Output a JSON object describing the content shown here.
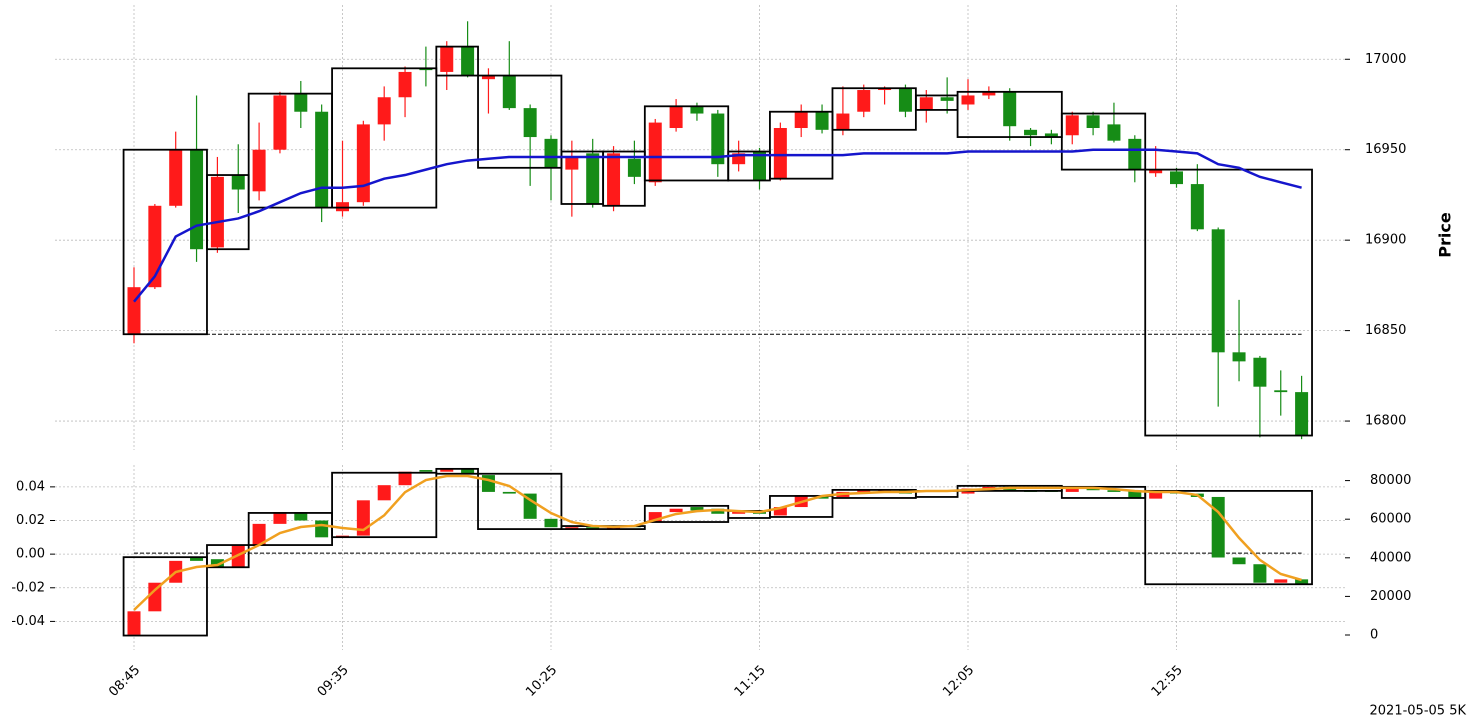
{
  "chart_data": [
    {
      "type": "candlestick",
      "y_label": "Price",
      "categories": [
        "08:45",
        null,
        null,
        null,
        null,
        null,
        null,
        null,
        null,
        null,
        "09:35",
        null,
        null,
        null,
        null,
        null,
        null,
        null,
        null,
        null,
        "10:25",
        null,
        null,
        null,
        null,
        null,
        null,
        null,
        null,
        null,
        "11:15",
        null,
        null,
        null,
        null,
        null,
        null,
        null,
        null,
        null,
        "12:05",
        null,
        null,
        null,
        null,
        null,
        null,
        null,
        null,
        null,
        "12:55",
        null,
        null,
        null,
        null,
        null,
        null
      ],
      "open": [
        16848,
        16874,
        16919,
        16950,
        16896,
        16936,
        16927,
        16950,
        16981,
        16971,
        16916,
        16921,
        16964,
        16979,
        16995,
        16993,
        17007,
        16989,
        16991,
        16973,
        16956,
        16939,
        16948,
        16919,
        16945,
        16932,
        16962,
        16974,
        16970,
        16942,
        16949,
        16934,
        16962,
        16971,
        16961,
        16971,
        16983,
        16984,
        16972,
        16979,
        16975,
        16980,
        16982,
        16961,
        16959,
        16958,
        16969,
        16964,
        16956,
        16937,
        16938,
        16931,
        16906,
        16838,
        16835,
        16817,
        16816
      ],
      "high": [
        16885,
        16920,
        16960,
        16980,
        16946,
        16953,
        16965,
        16982,
        16988,
        16975,
        16955,
        16966,
        16985,
        16996,
        17007,
        17010,
        17021,
        16995,
        17010,
        16975,
        16958,
        16955,
        16956,
        16952,
        16955,
        16967,
        16978,
        16976,
        16972,
        16955,
        16951,
        16965,
        16975,
        16975,
        16985,
        16986,
        16985,
        16986,
        16983,
        16990,
        16989,
        16985,
        16984,
        16962,
        16961,
        16971,
        16971,
        16976,
        16958,
        16952,
        16940,
        16942,
        16907,
        16867,
        16836,
        16828,
        16825
      ],
      "low": [
        16843,
        16873,
        16918,
        16888,
        16893,
        16915,
        16922,
        16948,
        16962,
        16910,
        16913,
        16919,
        16955,
        16968,
        16985,
        16983,
        16990,
        16970,
        16972,
        16930,
        16922,
        16913,
        16918,
        16916,
        16931,
        16930,
        16960,
        16966,
        16935,
        16938,
        16928,
        16933,
        16957,
        16959,
        16958,
        16968,
        16975,
        16968,
        16965,
        16970,
        16972,
        16978,
        16955,
        16952,
        16953,
        16953,
        16958,
        16954,
        16932,
        16935,
        16929,
        16905,
        16808,
        16822,
        16791,
        16803,
        16790
      ],
      "close": [
        16874,
        16919,
        16950,
        16895,
        16935,
        16928,
        16950,
        16980,
        16971,
        16918,
        16921,
        16964,
        16979,
        16993,
        16994,
        17007,
        16991,
        16991,
        16973,
        16957,
        16940,
        16946,
        16920,
        16948,
        16935,
        16965,
        16974,
        16970,
        16942,
        16948,
        16933,
        16962,
        16971,
        16961,
        16970,
        16983,
        16984,
        16971,
        16979,
        16977,
        16980,
        16982,
        16963,
        16958,
        16957,
        16969,
        16962,
        16955,
        16939,
        16939,
        16931,
        16906,
        16838,
        16833,
        16819,
        16816,
        16792
      ],
      "up_color": "#ff1a1a",
      "down_color": "#168c16",
      "box_color": "#000000",
      "line": {
        "color": "#1515cc",
        "values": [
          16866,
          16880,
          16902,
          16908,
          16910,
          16912,
          16916,
          16921,
          16926,
          16929,
          16929,
          16930,
          16934,
          16936,
          16939,
          16942,
          16944,
          16945,
          16946,
          16946,
          16946,
          16946,
          16946,
          16946,
          16946,
          16946,
          16946,
          16946,
          16946,
          16947,
          16947,
          16947,
          16947,
          16947,
          16947,
          16948,
          16948,
          16948,
          16948,
          16948,
          16949,
          16949,
          16949,
          16949,
          16949,
          16949,
          16950,
          16950,
          16950,
          16950,
          16949,
          16948,
          16942,
          16940,
          16935,
          16932,
          16929
        ]
      },
      "boxes": [
        {
          "from": 0,
          "to": 3,
          "low": 16848,
          "high": 16950
        },
        {
          "from": 4,
          "to": 5,
          "low": 16895,
          "high": 16936
        },
        {
          "from": 6,
          "to": 9,
          "low": 16918,
          "high": 16981
        },
        {
          "from": 10,
          "to": 14,
          "low": 16918,
          "high": 16995
        },
        {
          "from": 15,
          "to": 16,
          "low": 16991,
          "high": 17007
        },
        {
          "from": 17,
          "to": 20,
          "low": 16940,
          "high": 16991
        },
        {
          "from": 21,
          "to": 22,
          "low": 16920,
          "high": 16949
        },
        {
          "from": 23,
          "to": 24,
          "low": 16919,
          "high": 16949
        },
        {
          "from": 25,
          "to": 28,
          "low": 16933,
          "high": 16974
        },
        {
          "from": 29,
          "to": 30,
          "low": 16933,
          "high": 16949
        },
        {
          "from": 31,
          "to": 33,
          "low": 16934,
          "high": 16971
        },
        {
          "from": 34,
          "to": 37,
          "low": 16961,
          "high": 16984
        },
        {
          "from": 38,
          "to": 39,
          "low": 16972,
          "high": 16980
        },
        {
          "from": 40,
          "to": 44,
          "low": 16957,
          "high": 16982
        },
        {
          "from": 45,
          "to": 48,
          "low": 16939,
          "high": 16970
        },
        {
          "from": 49,
          "to": 56,
          "low": 16792,
          "high": 16939
        }
      ],
      "hline": 16848,
      "ylim": [
        16784,
        17030
      ],
      "yticks": [
        16800,
        16850,
        16900,
        16950,
        17000
      ],
      "grid": true
    },
    {
      "type": "candlestick",
      "open": [
        -0.048,
        -0.034,
        -0.017,
        -0.002,
        -0.003,
        -0.008,
        0.005,
        0.018,
        0.025,
        0.02,
        0.01,
        0.011,
        0.032,
        0.041,
        0.05,
        0.049,
        0.051,
        0.047,
        0.037,
        0.036,
        0.021,
        0.015,
        0.016,
        0.015,
        0.017,
        0.019,
        0.025,
        0.028,
        0.027,
        0.024,
        0.026,
        0.023,
        0.028,
        0.035,
        0.034,
        0.037,
        0.038,
        0.038,
        0.037,
        0.038,
        0.036,
        0.039,
        0.04,
        0.038,
        0.038,
        0.037,
        0.039,
        0.038,
        0.038,
        0.033,
        0.037,
        0.036,
        0.034,
        -0.002,
        -0.006,
        -0.017,
        -0.015
      ],
      "close": [
        -0.034,
        -0.017,
        -0.004,
        -0.004,
        -0.008,
        0.005,
        0.018,
        0.025,
        0.02,
        0.01,
        0.011,
        0.032,
        0.041,
        0.049,
        0.049,
        0.051,
        0.048,
        0.037,
        0.036,
        0.021,
        0.016,
        0.016,
        0.015,
        0.017,
        0.016,
        0.025,
        0.027,
        0.026,
        0.024,
        0.026,
        0.024,
        0.028,
        0.035,
        0.033,
        0.037,
        0.038,
        0.0385,
        0.036,
        0.038,
        0.037,
        0.039,
        0.04,
        0.038,
        0.037,
        0.037,
        0.039,
        0.038,
        0.037,
        0.033,
        0.037,
        0.036,
        0.034,
        -0.002,
        -0.006,
        -0.017,
        -0.015,
        -0.018
      ],
      "up_color": "#ff1a1a",
      "down_color": "#168c16",
      "box_color": "#000000",
      "line": {
        "color": "#f0a020",
        "axis": "y2",
        "values": [
          12950,
          23320,
          32640,
          35230,
          36270,
          41450,
          46630,
          52850,
          55960,
          57000,
          55440,
          54400,
          62000,
          74000,
          80300,
          82400,
          82400,
          80300,
          77200,
          70000,
          63200,
          58500,
          56500,
          56000,
          56500,
          59600,
          62700,
          64200,
          64800,
          64200,
          63700,
          65800,
          68900,
          72000,
          73100,
          73600,
          74100,
          74100,
          74600,
          74600,
          75100,
          75600,
          76200,
          76200,
          76200,
          76200,
          76200,
          75600,
          74600,
          74100,
          74100,
          72500,
          63700,
          50300,
          38900,
          31600,
          28500
        ]
      },
      "boxes": [
        {
          "from": 0,
          "to": 3,
          "low": -0.0484,
          "high": -0.0018
        },
        {
          "from": 4,
          "to": 5,
          "low": -0.0078,
          "high": 0.0054
        },
        {
          "from": 6,
          "to": 9,
          "low": 0.0054,
          "high": 0.0245
        },
        {
          "from": 10,
          "to": 14,
          "low": 0.0101,
          "high": 0.0484
        },
        {
          "from": 15,
          "to": 16,
          "low": 0.0478,
          "high": 0.0507
        },
        {
          "from": 17,
          "to": 20,
          "low": 0.0149,
          "high": 0.0478
        },
        {
          "from": 21,
          "to": 24,
          "low": 0.0149,
          "high": 0.0167
        },
        {
          "from": 25,
          "to": 28,
          "low": 0.0191,
          "high": 0.0287
        },
        {
          "from": 29,
          "to": 30,
          "low": 0.0215,
          "high": 0.0257
        },
        {
          "from": 31,
          "to": 33,
          "low": 0.0221,
          "high": 0.0346
        },
        {
          "from": 34,
          "to": 37,
          "low": 0.0334,
          "high": 0.0382
        },
        {
          "from": 38,
          "to": 39,
          "low": 0.034,
          "high": 0.0376
        },
        {
          "from": 40,
          "to": 44,
          "low": 0.0376,
          "high": 0.0406
        },
        {
          "from": 45,
          "to": 48,
          "low": 0.0334,
          "high": 0.04
        },
        {
          "from": 49,
          "to": 56,
          "low": -0.0179,
          "high": 0.0376
        }
      ],
      "hline": 0.0006,
      "ylim": [
        -0.057,
        0.053
      ],
      "yticks": [
        -0.04,
        -0.02,
        {
          "value": 0,
          "label": "0.00"
        },
        0.02,
        0.04
      ],
      "y2lim": [
        -7770,
        88080
      ],
      "y2ticks": [
        0,
        20000,
        40000,
        60000,
        80000
      ],
      "grid": true
    }
  ],
  "footnote": "2021-05-05 5K"
}
